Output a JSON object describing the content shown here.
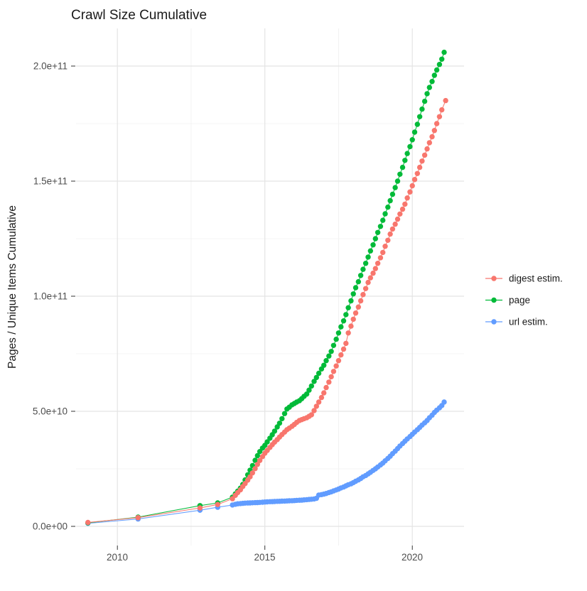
{
  "chart_data": {
    "type": "line",
    "title": "Crawl Size Cumulative",
    "xlabel": "",
    "ylabel": "Pages / Unique Items Cumulative",
    "legend_position": "right",
    "grid": true,
    "xlim": [
      2008.4,
      2021.85
    ],
    "ylim": [
      0,
      216000000000.0
    ],
    "y_unit": "items (points stored in billions, 1e9)",
    "x_ticks": [
      {
        "value": 2010,
        "label": "2010"
      },
      {
        "value": 2015,
        "label": "2015"
      },
      {
        "value": 2020,
        "label": "2020"
      }
    ],
    "x_minor": [
      2012.5,
      2017.5
    ],
    "y_ticks": [
      {
        "value": 0,
        "label": "0.0e+00"
      },
      {
        "value": 50,
        "label": "5.0e+10"
      },
      {
        "value": 100,
        "label": "1.0e+11"
      },
      {
        "value": 150,
        "label": "1.5e+11"
      },
      {
        "value": 200,
        "label": "2.0e+11"
      }
    ],
    "y_minor": [
      25,
      75,
      125,
      175
    ],
    "legend": [
      {
        "name": "digest estim.",
        "color": "#F8766D"
      },
      {
        "name": "page",
        "color": "#00BA38"
      },
      {
        "name": "url estim.",
        "color": "#619CFF"
      }
    ],
    "series": [
      {
        "name": "digest estim.",
        "color": "#F8766D",
        "points_year_billions": [
          [
            2009.0,
            1.7
          ],
          [
            2010.7,
            3.8
          ],
          [
            2012.8,
            8.0
          ],
          [
            2013.4,
            9.5
          ],
          [
            2013.9,
            12.0
          ],
          [
            2014.0,
            13.5
          ],
          [
            2014.08,
            14.7
          ],
          [
            2014.17,
            15.9
          ],
          [
            2014.25,
            17.3
          ],
          [
            2014.33,
            18.6
          ],
          [
            2014.42,
            20.1
          ],
          [
            2014.5,
            21.5
          ],
          [
            2014.58,
            23.2
          ],
          [
            2014.67,
            25.1
          ],
          [
            2014.75,
            26.9
          ],
          [
            2014.83,
            28.6
          ],
          [
            2014.92,
            30.3
          ],
          [
            2015.0,
            31.8
          ],
          [
            2015.08,
            33.0
          ],
          [
            2015.17,
            34.3
          ],
          [
            2015.25,
            35.5
          ],
          [
            2015.33,
            36.6
          ],
          [
            2015.42,
            37.7
          ],
          [
            2015.5,
            38.8
          ],
          [
            2015.58,
            39.9
          ],
          [
            2015.67,
            41.0
          ],
          [
            2015.75,
            42.0
          ],
          [
            2015.83,
            42.7
          ],
          [
            2015.92,
            43.5
          ],
          [
            2016.0,
            44.3
          ],
          [
            2016.08,
            45.2
          ],
          [
            2016.17,
            46.0
          ],
          [
            2016.25,
            46.4
          ],
          [
            2016.33,
            46.8
          ],
          [
            2016.42,
            47.2
          ],
          [
            2016.5,
            47.8
          ],
          [
            2016.58,
            48.5
          ],
          [
            2016.67,
            50.3
          ],
          [
            2016.75,
            52.2
          ],
          [
            2016.83,
            54.0
          ],
          [
            2016.92,
            56.0
          ],
          [
            2017.0,
            58.0
          ],
          [
            2017.08,
            60.3
          ],
          [
            2017.17,
            62.7
          ],
          [
            2017.25,
            65.0
          ],
          [
            2017.33,
            67.3
          ],
          [
            2017.42,
            69.7
          ],
          [
            2017.5,
            72.0
          ],
          [
            2017.58,
            74.5
          ],
          [
            2017.67,
            77.0
          ],
          [
            2017.75,
            79.5
          ],
          [
            2017.83,
            84.0
          ],
          [
            2017.92,
            87.0
          ],
          [
            2018.0,
            90.0
          ],
          [
            2018.08,
            92.7
          ],
          [
            2018.17,
            95.3
          ],
          [
            2018.25,
            98.0
          ],
          [
            2018.33,
            100.7
          ],
          [
            2018.42,
            103.3
          ],
          [
            2018.5,
            106.0
          ],
          [
            2018.58,
            108.0
          ],
          [
            2018.67,
            110.0
          ],
          [
            2018.75,
            112.0
          ],
          [
            2018.83,
            114.3
          ],
          [
            2018.92,
            116.7
          ],
          [
            2019.0,
            119.0
          ],
          [
            2019.08,
            121.7
          ],
          [
            2019.17,
            124.3
          ],
          [
            2019.25,
            127.0
          ],
          [
            2019.33,
            129.2
          ],
          [
            2019.42,
            131.3
          ],
          [
            2019.5,
            133.5
          ],
          [
            2019.58,
            135.7
          ],
          [
            2019.67,
            137.8
          ],
          [
            2019.75,
            140.0
          ],
          [
            2019.83,
            142.7
          ],
          [
            2019.92,
            145.3
          ],
          [
            2020.0,
            148.0
          ],
          [
            2020.08,
            150.7
          ],
          [
            2020.17,
            153.3
          ],
          [
            2020.25,
            156.0
          ],
          [
            2020.33,
            158.7
          ],
          [
            2020.42,
            161.3
          ],
          [
            2020.5,
            164.0
          ],
          [
            2020.58,
            166.7
          ],
          [
            2020.67,
            169.3
          ],
          [
            2020.75,
            172.0
          ],
          [
            2020.83,
            175.0
          ],
          [
            2020.92,
            178.0
          ],
          [
            2021.0,
            181.0
          ],
          [
            2021.13,
            185.0
          ]
        ]
      },
      {
        "name": "page",
        "color": "#00BA38",
        "points_year_billions": [
          [
            2009.0,
            1.5
          ],
          [
            2010.7,
            4.0
          ],
          [
            2012.8,
            9.0
          ],
          [
            2013.4,
            10.2
          ],
          [
            2013.9,
            12.7
          ],
          [
            2014.0,
            14.1
          ],
          [
            2014.08,
            15.3
          ],
          [
            2014.17,
            16.6
          ],
          [
            2014.25,
            18.2
          ],
          [
            2014.33,
            20.2
          ],
          [
            2014.42,
            22.4
          ],
          [
            2014.5,
            24.4
          ],
          [
            2014.58,
            26.4
          ],
          [
            2014.67,
            28.7
          ],
          [
            2014.75,
            30.7
          ],
          [
            2014.83,
            32.5
          ],
          [
            2014.92,
            34.0
          ],
          [
            2015.0,
            35.2
          ],
          [
            2015.08,
            36.7
          ],
          [
            2015.17,
            38.3
          ],
          [
            2015.25,
            39.8
          ],
          [
            2015.33,
            41.4
          ],
          [
            2015.42,
            43.2
          ],
          [
            2015.5,
            44.8
          ],
          [
            2015.58,
            46.8
          ],
          [
            2015.67,
            49.0
          ],
          [
            2015.75,
            51.0
          ],
          [
            2015.83,
            51.8
          ],
          [
            2015.92,
            52.8
          ],
          [
            2016.0,
            53.4
          ],
          [
            2016.08,
            54.0
          ],
          [
            2016.17,
            54.6
          ],
          [
            2016.25,
            55.5
          ],
          [
            2016.33,
            56.5
          ],
          [
            2016.42,
            57.5
          ],
          [
            2016.5,
            59.2
          ],
          [
            2016.58,
            61.0
          ],
          [
            2016.67,
            63.0
          ],
          [
            2016.75,
            64.7
          ],
          [
            2016.83,
            66.5
          ],
          [
            2016.92,
            68.4
          ],
          [
            2017.0,
            70.0
          ],
          [
            2017.08,
            72.0
          ],
          [
            2017.17,
            74.0
          ],
          [
            2017.25,
            76.0
          ],
          [
            2017.33,
            78.6
          ],
          [
            2017.42,
            81.3
          ],
          [
            2017.5,
            84.0
          ],
          [
            2017.58,
            86.7
          ],
          [
            2017.67,
            89.3
          ],
          [
            2017.75,
            92.0
          ],
          [
            2017.83,
            95.0
          ],
          [
            2017.92,
            98.0
          ],
          [
            2018.0,
            101.0
          ],
          [
            2018.08,
            103.7
          ],
          [
            2018.17,
            106.3
          ],
          [
            2018.25,
            109.0
          ],
          [
            2018.33,
            111.7
          ],
          [
            2018.42,
            114.3
          ],
          [
            2018.5,
            117.0
          ],
          [
            2018.58,
            119.7
          ],
          [
            2018.67,
            122.3
          ],
          [
            2018.75,
            125.0
          ],
          [
            2018.83,
            127.7
          ],
          [
            2018.92,
            130.3
          ],
          [
            2019.0,
            133.0
          ],
          [
            2019.08,
            135.8
          ],
          [
            2019.17,
            138.7
          ],
          [
            2019.25,
            141.5
          ],
          [
            2019.33,
            144.3
          ],
          [
            2019.42,
            147.2
          ],
          [
            2019.5,
            150.0
          ],
          [
            2019.58,
            153.0
          ],
          [
            2019.67,
            156.0
          ],
          [
            2019.75,
            159.0
          ],
          [
            2019.83,
            162.0
          ],
          [
            2019.92,
            165.0
          ],
          [
            2020.0,
            168.0
          ],
          [
            2020.08,
            171.3
          ],
          [
            2020.17,
            174.7
          ],
          [
            2020.25,
            178.0
          ],
          [
            2020.33,
            181.3
          ],
          [
            2020.42,
            184.7
          ],
          [
            2020.5,
            188.0
          ],
          [
            2020.58,
            190.7
          ],
          [
            2020.67,
            193.3
          ],
          [
            2020.75,
            196.0
          ],
          [
            2020.83,
            198.3
          ],
          [
            2020.92,
            200.7
          ],
          [
            2021.0,
            203.0
          ],
          [
            2021.08,
            206.0
          ]
        ]
      },
      {
        "name": "url estim.",
        "color": "#619CFF",
        "points_year_billions": [
          [
            2009.0,
            1.3
          ],
          [
            2010.7,
            3.2
          ],
          [
            2012.8,
            7.0
          ],
          [
            2013.4,
            8.3
          ],
          [
            2013.9,
            9.3
          ],
          [
            2014.0,
            9.6
          ],
          [
            2014.08,
            9.8
          ],
          [
            2014.17,
            9.9
          ],
          [
            2014.25,
            10.0
          ],
          [
            2014.33,
            10.1
          ],
          [
            2014.42,
            10.15
          ],
          [
            2014.5,
            10.2
          ],
          [
            2014.58,
            10.25
          ],
          [
            2014.67,
            10.3
          ],
          [
            2014.75,
            10.35
          ],
          [
            2014.83,
            10.4
          ],
          [
            2014.92,
            10.5
          ],
          [
            2015.0,
            10.6
          ],
          [
            2015.08,
            10.65
          ],
          [
            2015.17,
            10.7
          ],
          [
            2015.25,
            10.75
          ],
          [
            2015.33,
            10.8
          ],
          [
            2015.42,
            10.85
          ],
          [
            2015.5,
            10.9
          ],
          [
            2015.58,
            10.95
          ],
          [
            2015.67,
            11.0
          ],
          [
            2015.75,
            11.05
          ],
          [
            2015.83,
            11.1
          ],
          [
            2015.92,
            11.15
          ],
          [
            2016.0,
            11.2
          ],
          [
            2016.08,
            11.3
          ],
          [
            2016.17,
            11.35
          ],
          [
            2016.25,
            11.4
          ],
          [
            2016.33,
            11.5
          ],
          [
            2016.42,
            11.6
          ],
          [
            2016.5,
            11.7
          ],
          [
            2016.58,
            11.8
          ],
          [
            2016.67,
            11.9
          ],
          [
            2016.75,
            12.2
          ],
          [
            2016.83,
            13.6
          ],
          [
            2016.92,
            13.8
          ],
          [
            2017.0,
            14.0
          ],
          [
            2017.08,
            14.3
          ],
          [
            2017.17,
            14.7
          ],
          [
            2017.25,
            15.0
          ],
          [
            2017.33,
            15.4
          ],
          [
            2017.42,
            15.8
          ],
          [
            2017.5,
            16.2
          ],
          [
            2017.58,
            16.7
          ],
          [
            2017.67,
            17.1
          ],
          [
            2017.75,
            17.6
          ],
          [
            2017.83,
            18.1
          ],
          [
            2017.92,
            18.5
          ],
          [
            2018.0,
            19.0
          ],
          [
            2018.08,
            19.6
          ],
          [
            2018.17,
            20.2
          ],
          [
            2018.25,
            20.8
          ],
          [
            2018.33,
            21.5
          ],
          [
            2018.42,
            22.1
          ],
          [
            2018.5,
            22.8
          ],
          [
            2018.58,
            23.5
          ],
          [
            2018.67,
            24.3
          ],
          [
            2018.75,
            25.0
          ],
          [
            2018.83,
            25.8
          ],
          [
            2018.92,
            26.7
          ],
          [
            2019.0,
            27.5
          ],
          [
            2019.08,
            28.5
          ],
          [
            2019.17,
            29.5
          ],
          [
            2019.25,
            30.5
          ],
          [
            2019.33,
            31.6
          ],
          [
            2019.42,
            32.7
          ],
          [
            2019.5,
            33.8
          ],
          [
            2019.58,
            34.9
          ],
          [
            2019.67,
            36.0
          ],
          [
            2019.75,
            37.0
          ],
          [
            2019.83,
            38.0
          ],
          [
            2019.92,
            39.0
          ],
          [
            2020.0,
            40.0
          ],
          [
            2020.08,
            41.0
          ],
          [
            2020.17,
            42.0
          ],
          [
            2020.25,
            43.0
          ],
          [
            2020.33,
            44.0
          ],
          [
            2020.42,
            45.0
          ],
          [
            2020.5,
            46.0
          ],
          [
            2020.58,
            47.2
          ],
          [
            2020.67,
            48.3
          ],
          [
            2020.75,
            49.5
          ],
          [
            2020.83,
            50.5
          ],
          [
            2020.92,
            51.5
          ],
          [
            2021.0,
            52.5
          ],
          [
            2021.08,
            54.0
          ]
        ]
      }
    ],
    "style": {
      "grid_major_color": "#e4e4e4",
      "grid_minor_color": "#f0f0f0",
      "tick_mark_color": "#333333",
      "background": "#ffffff"
    }
  }
}
